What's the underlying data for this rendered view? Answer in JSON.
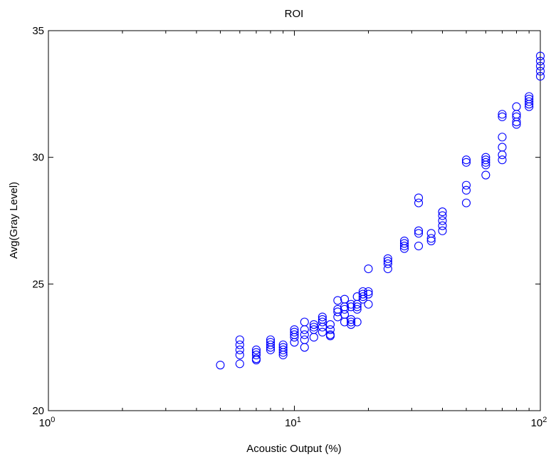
{
  "chart_data": {
    "type": "scatter",
    "title": "ROI",
    "xlabel": "Acoustic Output (%)",
    "ylabel": "Avg(Gray Level)",
    "xscale": "log",
    "xlim": [
      1,
      100
    ],
    "ylim": [
      20,
      35
    ],
    "x_ticks": [
      1,
      10,
      100
    ],
    "x_tick_labels": [
      {
        "base": "10",
        "exp": "0"
      },
      {
        "base": "10",
        "exp": "1"
      },
      {
        "base": "10",
        "exp": "2"
      }
    ],
    "y_ticks": [
      20,
      25,
      30,
      35
    ],
    "y_tick_labels": [
      "20",
      "25",
      "30",
      "35"
    ],
    "grid": false,
    "legend": "none",
    "marker": "circle-open",
    "color": "#0000ff",
    "points": [
      [
        5,
        21.8
      ],
      [
        6,
        21.85
      ],
      [
        6,
        22.2
      ],
      [
        6,
        22.4
      ],
      [
        6,
        22.6
      ],
      [
        6,
        22.8
      ],
      [
        7,
        22.0
      ],
      [
        7,
        22.05
      ],
      [
        7,
        22.2
      ],
      [
        7,
        22.3
      ],
      [
        7,
        22.4
      ],
      [
        8,
        22.4
      ],
      [
        8,
        22.5
      ],
      [
        8,
        22.6
      ],
      [
        8,
        22.7
      ],
      [
        8,
        22.8
      ],
      [
        9,
        22.2
      ],
      [
        9,
        22.3
      ],
      [
        9,
        22.4
      ],
      [
        9,
        22.5
      ],
      [
        9,
        22.6
      ],
      [
        10,
        22.7
      ],
      [
        10,
        22.9
      ],
      [
        10,
        23.0
      ],
      [
        10,
        23.1
      ],
      [
        10,
        23.2
      ],
      [
        11,
        22.5
      ],
      [
        11,
        22.8
      ],
      [
        11,
        23.0
      ],
      [
        11,
        23.2
      ],
      [
        11,
        23.5
      ],
      [
        12,
        22.9
      ],
      [
        12,
        23.2
      ],
      [
        12,
        23.3
      ],
      [
        12,
        23.4
      ],
      [
        13,
        23.1
      ],
      [
        13,
        23.3
      ],
      [
        13,
        23.5
      ],
      [
        13,
        23.6
      ],
      [
        13,
        23.7
      ],
      [
        14,
        22.95
      ],
      [
        14,
        23.0
      ],
      [
        14,
        23.2
      ],
      [
        14,
        23.4
      ],
      [
        15,
        23.7
      ],
      [
        15,
        23.9
      ],
      [
        15,
        24.0
      ],
      [
        15,
        24.35
      ],
      [
        16,
        23.5
      ],
      [
        16,
        23.8
      ],
      [
        16,
        24.0
      ],
      [
        16,
        24.1
      ],
      [
        16,
        24.4
      ],
      [
        17,
        23.4
      ],
      [
        17,
        23.5
      ],
      [
        17,
        23.6
      ],
      [
        17,
        24.1
      ],
      [
        17,
        24.2
      ],
      [
        18,
        23.5
      ],
      [
        18,
        24.0
      ],
      [
        18,
        24.1
      ],
      [
        18,
        24.2
      ],
      [
        18,
        24.5
      ],
      [
        19,
        24.4
      ],
      [
        19,
        24.5
      ],
      [
        19,
        24.6
      ],
      [
        19,
        24.7
      ],
      [
        20,
        24.2
      ],
      [
        20,
        24.6
      ],
      [
        20,
        24.7
      ],
      [
        20,
        25.6
      ],
      [
        24,
        25.6
      ],
      [
        24,
        25.8
      ],
      [
        24,
        25.9
      ],
      [
        24,
        26.0
      ],
      [
        28,
        26.4
      ],
      [
        28,
        26.5
      ],
      [
        28,
        26.6
      ],
      [
        28,
        26.7
      ],
      [
        32,
        26.5
      ],
      [
        32,
        27.0
      ],
      [
        32,
        27.1
      ],
      [
        32,
        28.2
      ],
      [
        32,
        28.4
      ],
      [
        36,
        26.7
      ],
      [
        36,
        26.8
      ],
      [
        36,
        27.0
      ],
      [
        40,
        27.1
      ],
      [
        40,
        27.3
      ],
      [
        40,
        27.5
      ],
      [
        40,
        27.7
      ],
      [
        40,
        27.85
      ],
      [
        50,
        28.2
      ],
      [
        50,
        28.7
      ],
      [
        50,
        28.9
      ],
      [
        50,
        29.8
      ],
      [
        50,
        29.9
      ],
      [
        60,
        29.3
      ],
      [
        60,
        29.7
      ],
      [
        60,
        29.8
      ],
      [
        60,
        29.9
      ],
      [
        60,
        30.0
      ],
      [
        70,
        29.9
      ],
      [
        70,
        30.1
      ],
      [
        70,
        30.4
      ],
      [
        70,
        30.8
      ],
      [
        70,
        31.6
      ],
      [
        70,
        31.7
      ],
      [
        80,
        31.3
      ],
      [
        80,
        31.4
      ],
      [
        80,
        31.6
      ],
      [
        80,
        31.7
      ],
      [
        80,
        32.0
      ],
      [
        90,
        32.0
      ],
      [
        90,
        32.1
      ],
      [
        90,
        32.2
      ],
      [
        90,
        32.3
      ],
      [
        90,
        32.4
      ],
      [
        100,
        33.2
      ],
      [
        100,
        33.4
      ],
      [
        100,
        33.6
      ],
      [
        100,
        33.8
      ],
      [
        100,
        34.0
      ]
    ]
  }
}
